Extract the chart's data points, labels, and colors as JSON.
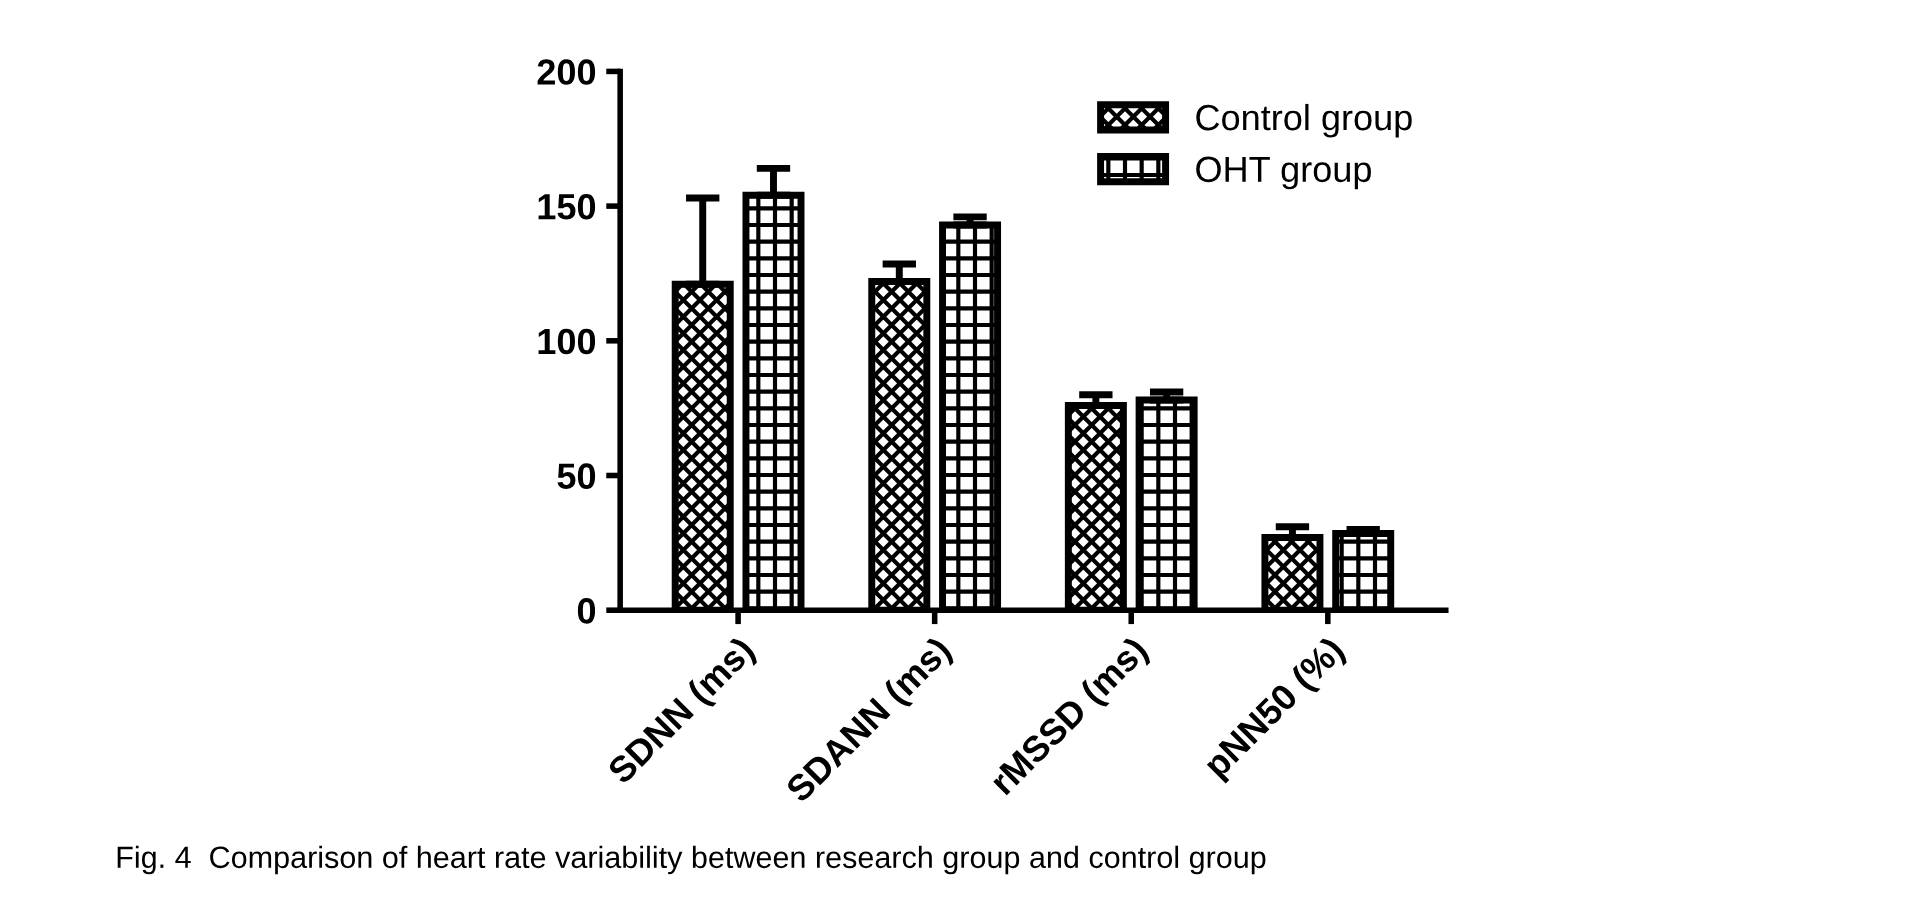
{
  "chart_data": {
    "type": "bar",
    "categories": [
      "SDNN (ms)",
      "SDANN (ms)",
      "rMSSD (ms)",
      "pNN50 (%)"
    ],
    "series": [
      {
        "name": "Control group",
        "color": "#000000",
        "values": [
          121,
          122,
          76,
          27
        ],
        "errors": [
          32,
          6.5,
          4,
          4
        ]
      },
      {
        "name": "OHT group",
        "color": "#000000",
        "values": [
          154,
          143,
          78,
          28.5
        ],
        "errors": [
          10,
          3,
          3,
          1.5
        ]
      }
    ],
    "ylim": [
      0,
      200
    ],
    "yticks": [
      0,
      50,
      100,
      150,
      200
    ],
    "grid": false,
    "legend": "top right",
    "annotations": [
      "Fig. 4  Comparison of heart rate variability between research group and control group"
    ]
  }
}
